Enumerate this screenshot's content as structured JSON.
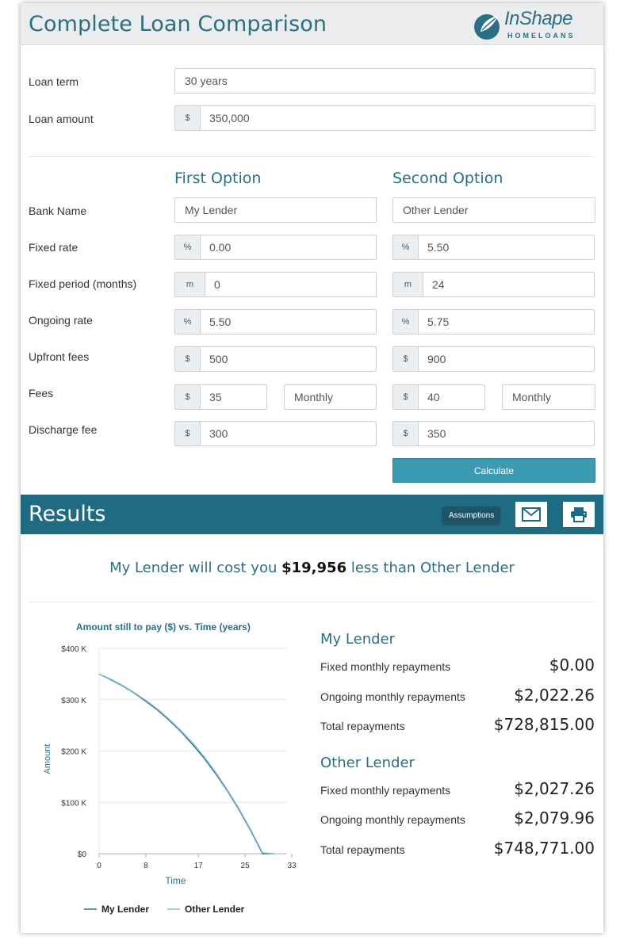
{
  "header": {
    "title": "Complete Loan Comparison",
    "logo_top": "InShape",
    "logo_bottom": "HOMELOANS"
  },
  "loan": {
    "term_label": "Loan term",
    "term_value": "30 years",
    "amount_label": "Loan amount",
    "amount_prefix": "$",
    "amount_value": "350,000"
  },
  "options": {
    "first_heading": "First Option",
    "second_heading": "Second Option"
  },
  "labels": {
    "bank_name": "Bank Name",
    "fixed_rate": "Fixed rate",
    "fixed_period": "Fixed period (months)",
    "ongoing_rate": "Ongoing rate",
    "upfront_fees": "Upfront fees",
    "fees": "Fees",
    "discharge_fee": "Discharge fee"
  },
  "first": {
    "bank_name": "My Lender",
    "fixed_rate_prefix": "%",
    "fixed_rate": "0.00",
    "fixed_period_prefix": "m",
    "fixed_period": "0",
    "ongoing_rate_prefix": "%",
    "ongoing_rate": "5.50",
    "upfront_prefix": "$",
    "upfront_fees": "500",
    "fees_prefix": "$",
    "fees": "35",
    "fees_frequency": "Monthly",
    "discharge_prefix": "$",
    "discharge_fee": "300"
  },
  "second": {
    "bank_name": "Other Lender",
    "fixed_rate_prefix": "%",
    "fixed_rate": "5.50",
    "fixed_period_prefix": "m",
    "fixed_period": "24",
    "ongoing_rate_prefix": "%",
    "ongoing_rate": "5.75",
    "upfront_prefix": "$",
    "upfront_fees": "900",
    "fees_prefix": "$",
    "fees": "40",
    "fees_frequency": "Monthly",
    "discharge_prefix": "$",
    "discharge_fee": "350"
  },
  "calculate_label": "Calculate",
  "results": {
    "title": "Results",
    "assumptions_label": "Assumptions",
    "email_icon": "envelope-icon",
    "print_icon": "printer-icon",
    "summary_prefix": "My Lender will cost you",
    "summary_amount": "$19,956",
    "summary_suffix": "less than Other Lender",
    "lender1": {
      "name": "My Lender",
      "fixed_label": "Fixed monthly repayments",
      "fixed_value": "$0.00",
      "ongoing_label": "Ongoing monthly repayments",
      "ongoing_value": "$2,022.26",
      "total_label": "Total repayments",
      "total_value": "$728,815.00"
    },
    "lender2": {
      "name": "Other Lender",
      "fixed_label": "Fixed monthly repayments",
      "fixed_value": "$2,027.26",
      "ongoing_label": "Ongoing monthly repayments",
      "ongoing_value": "$2,079.96",
      "total_label": "Total repayments",
      "total_value": "$748,771.00"
    }
  },
  "colors": {
    "accent": "#2b6f84",
    "results_bar": "#1f6b82",
    "button": "#3d9ab3",
    "series1": "#2b6f84",
    "series2": "#7fc3d4"
  },
  "chart_data": {
    "type": "line",
    "title": "Amount still to pay ($) vs. Time (years)",
    "xlabel": "Time",
    "ylabel": "Amount",
    "xlim": [
      0,
      33
    ],
    "ylim": [
      0,
      400000
    ],
    "x_ticks": [
      "0",
      "8",
      "17",
      "25",
      "33"
    ],
    "y_ticks": [
      "$0",
      "$100 K",
      "$200 K",
      "$300 K",
      "$400 K"
    ],
    "x_tick_values": [
      0,
      8,
      17,
      25,
      33
    ],
    "y_tick_values": [
      0,
      100000,
      200000,
      300000,
      400000
    ],
    "grid": true,
    "legend": "bottom",
    "series": [
      {
        "name": "My Lender",
        "color": "#2b6f84",
        "x": [
          0,
          2,
          4,
          6,
          8,
          10,
          12,
          14,
          16,
          18,
          20,
          22,
          24,
          26,
          28,
          30
        ],
        "y": [
          350000,
          339000,
          327000,
          313000,
          297000,
          280000,
          260000,
          238000,
          213000,
          186000,
          155000,
          122000,
          85000,
          44000,
          0,
          0
        ]
      },
      {
        "name": "Other Lender",
        "color": "#7fc3d4",
        "x": [
          0,
          2,
          4,
          6,
          8,
          10,
          12,
          14,
          16,
          18,
          20,
          22,
          24,
          26,
          28,
          30
        ],
        "y": [
          350000,
          340000,
          328000,
          314000,
          299000,
          282000,
          262000,
          240000,
          216000,
          189000,
          158000,
          124000,
          87000,
          46000,
          2000,
          0
        ]
      }
    ]
  }
}
